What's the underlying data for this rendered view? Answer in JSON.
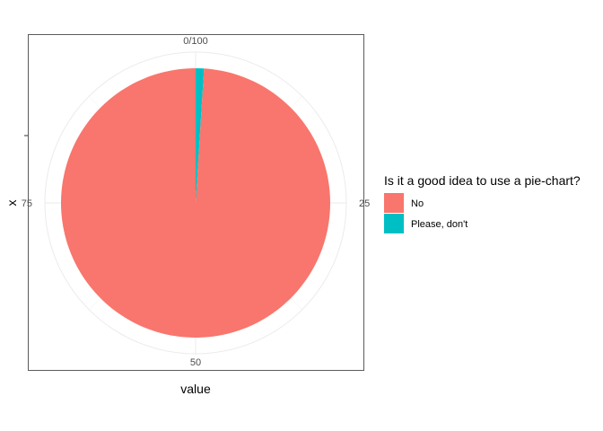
{
  "chart_data": {
    "type": "pie",
    "coord": "polar",
    "xlabel": "value",
    "ylabel": "x",
    "theta_ticks": [
      "0/100",
      "25",
      "50",
      "75"
    ],
    "theta_range": [
      0,
      100
    ],
    "grid": true,
    "legend": {
      "title": "Is it a good idea to use a pie-chart?",
      "position": "right"
    },
    "slices": [
      {
        "label": "No",
        "value": 99,
        "color": "#F8766D"
      },
      {
        "label": "Please, don't",
        "value": 1,
        "color": "#00BFC4"
      }
    ]
  }
}
